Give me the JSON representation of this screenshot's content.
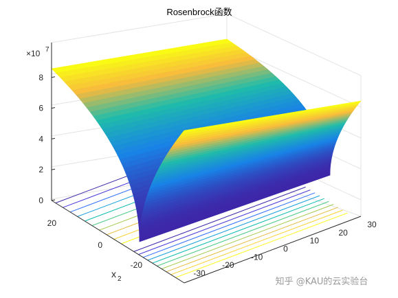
{
  "chart_data": {
    "type": "surface",
    "title": "Rosenbrock函数",
    "function": "f(x1,x2) = 100*(x2 - x1^2)^2 + (1 - x1)^2",
    "xlabel": "",
    "ylabel": "x2",
    "zlabel": "",
    "x1_range": [
      -30,
      30
    ],
    "x2_range": [
      -30,
      30
    ],
    "zlim": [
      0,
      85000000.0
    ],
    "z_exponent_label": "×10",
    "z_exponent_power": "7",
    "x1_ticks": [
      "-30",
      "-20",
      "-10",
      "0",
      "10",
      "20",
      "30"
    ],
    "x2_ticks": [
      "20",
      "0",
      "-20"
    ],
    "z_ticks": [
      "0",
      "2",
      "4",
      "6",
      "8"
    ],
    "colormap": "parula",
    "contour_levels_on_floor": true,
    "grid": true,
    "colors": {
      "low": "#3e26a8",
      "mid": "#1fb1b5",
      "high": "#f9fb15",
      "grid": "#e0e0e0",
      "axis": "#262626"
    }
  },
  "watermark": "知乎 @KAU的云实验台"
}
